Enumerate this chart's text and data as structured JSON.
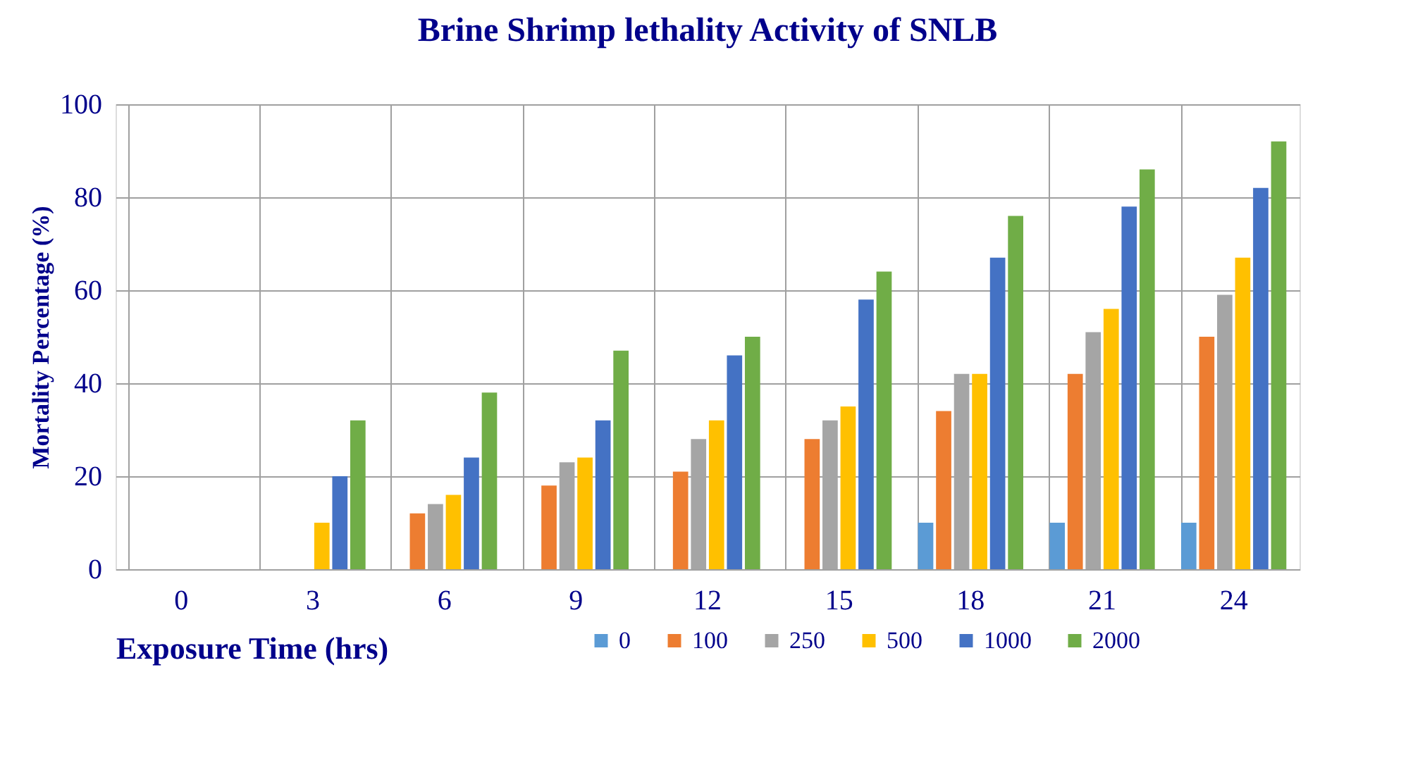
{
  "chart_data": {
    "type": "bar",
    "title": "Brine Shrimp lethality Activity of SNLB",
    "xlabel": "Exposure Time (hrs)",
    "ylabel": "Mortality Percentage (%)",
    "categories": [
      "0",
      "3",
      "6",
      "9",
      "12",
      "15",
      "18",
      "21",
      "24"
    ],
    "series": [
      {
        "name": "0",
        "color": "#5b9bd5",
        "values": [
          0,
          0,
          0,
          0,
          0,
          0,
          10,
          10,
          10
        ]
      },
      {
        "name": "100",
        "color": "#ed7d31",
        "values": [
          0,
          0,
          12,
          18,
          21,
          28,
          34,
          42,
          50
        ]
      },
      {
        "name": "250",
        "color": "#a5a5a5",
        "values": [
          0,
          0,
          14,
          23,
          28,
          32,
          42,
          51,
          59
        ]
      },
      {
        "name": "500",
        "color": "#ffc000",
        "values": [
          0,
          10,
          16,
          24,
          32,
          35,
          42,
          56,
          67
        ]
      },
      {
        "name": "1000",
        "color": "#4472c4",
        "values": [
          0,
          20,
          24,
          32,
          46,
          58,
          67,
          78,
          82
        ]
      },
      {
        "name": "2000",
        "color": "#70ad47",
        "values": [
          0,
          32,
          38,
          47,
          50,
          64,
          76,
          86,
          92
        ]
      }
    ],
    "ylim": [
      0,
      100
    ],
    "yticks": [
      0,
      20,
      40,
      60,
      80,
      100
    ],
    "grid": true,
    "legend": "bottom"
  }
}
